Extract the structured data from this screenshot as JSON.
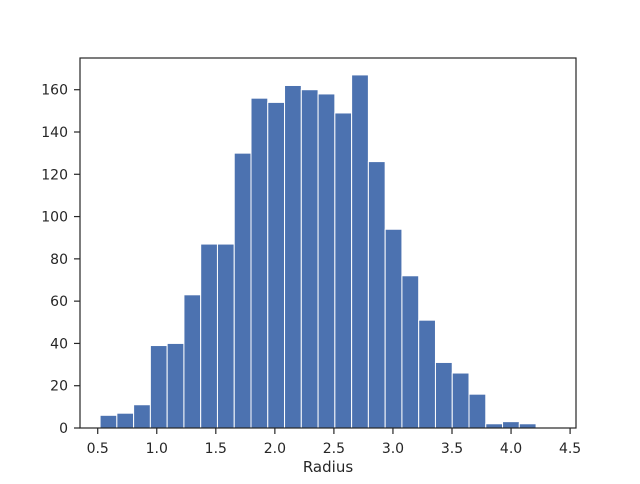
{
  "chart_data": {
    "type": "bar",
    "title": "",
    "xlabel": "Radius",
    "ylabel": "",
    "xlim": [
      0.35,
      4.55
    ],
    "ylim": [
      0,
      175
    ],
    "xticks": [
      "0.5",
      "1.0",
      "1.5",
      "2.0",
      "2.5",
      "3.0",
      "3.5",
      "4.0",
      "4.5"
    ],
    "yticks": [
      "0",
      "20",
      "40",
      "60",
      "80",
      "100",
      "120",
      "140",
      "160"
    ],
    "bin_edges": [
      0.52,
      0.662,
      0.804,
      0.946,
      1.088,
      1.23,
      1.372,
      1.514,
      1.656,
      1.798,
      1.94,
      2.082,
      2.224,
      2.366,
      2.508,
      2.65,
      2.792,
      2.934,
      3.076,
      3.218,
      3.36,
      3.502,
      3.644,
      3.786,
      3.928,
      4.07,
      4.212,
      4.354
    ],
    "values": [
      6,
      7,
      11,
      39,
      40,
      63,
      87,
      87,
      130,
      156,
      154,
      162,
      160,
      158,
      149,
      167,
      126,
      94,
      72,
      51,
      31,
      26,
      16,
      2,
      3,
      2,
      0
    ],
    "bar_color": "#4c72b0",
    "grid": false,
    "legend": "none"
  }
}
